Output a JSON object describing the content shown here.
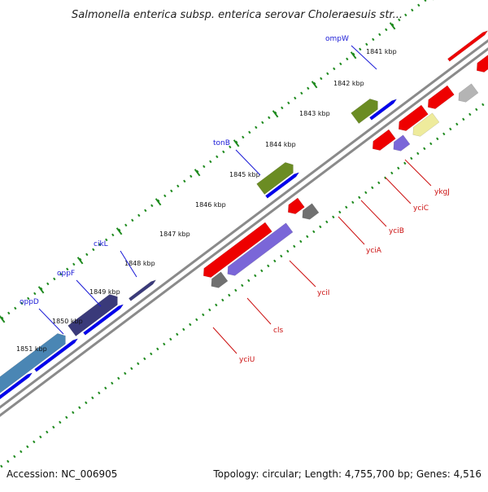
{
  "title": "Salmonella enterica subsp. enterica serovar Choleraesuis str...",
  "footer": {
    "accession": "Accession: NC_006905",
    "summary": "Topology: circular; Length: 4,755,700 bp; Genes: 4,516"
  },
  "ticks": [
    "1841 kbp",
    "1842 kbp",
    "1843 kbp",
    "1844 kbp",
    "1845 kbp",
    "1846 kbp",
    "1847 kbp",
    "1848 kbp",
    "1849 kbp",
    "1850 kbp",
    "1851 kbp"
  ],
  "genes_top": [
    {
      "name": "ompW",
      "color": "#1a1ad6"
    },
    {
      "name": "tonB",
      "color": "#1a1ad6"
    },
    {
      "name": "cikL",
      "color": "#1a1ad6"
    },
    {
      "name": "oppF",
      "color": "#1a1ad6"
    },
    {
      "name": "oppD",
      "color": "#1a1ad6"
    }
  ],
  "genes_bottom": [
    {
      "name": "ykgJ",
      "color": "#cc1111"
    },
    {
      "name": "yciC",
      "color": "#cc1111"
    },
    {
      "name": "yciB",
      "color": "#cc1111"
    },
    {
      "name": "yciA",
      "color": "#cc1111"
    },
    {
      "name": "yciI",
      "color": "#cc1111"
    },
    {
      "name": "cls",
      "color": "#cc1111"
    },
    {
      "name": "yciU",
      "color": "#cc1111"
    }
  ],
  "colors": {
    "backbone": "#8a8a8a",
    "ruler": "#1e8a1e",
    "forward_blue": "#0000ee",
    "forward_green": "#6b8c23",
    "forward_navy": "#3a3a7a",
    "forward_teal": "#4a86b4",
    "reverse_red": "#ee0000",
    "reverse_violet": "#7a66d8",
    "reverse_grey": "#707070",
    "reverse_yellow": "#eeeb9c",
    "reverse_light_grey": "#b4b4b4"
  }
}
